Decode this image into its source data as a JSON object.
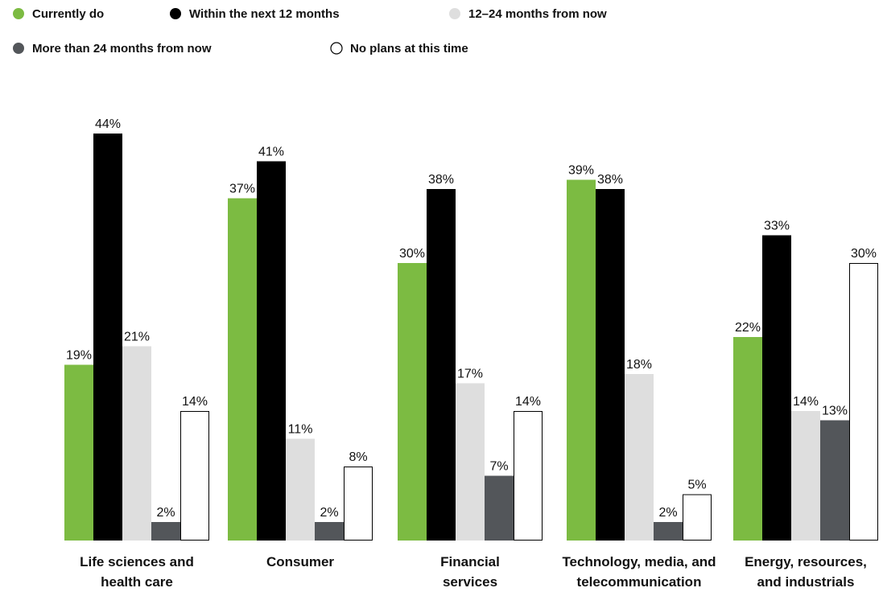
{
  "chart_data": {
    "type": "bar",
    "title": "",
    "xlabel": "",
    "ylabel": "",
    "ylim": [
      0,
      45
    ],
    "legend_position": "top",
    "grid": false,
    "categories": [
      [
        "Life sciences and",
        "health care"
      ],
      [
        "Consumer"
      ],
      [
        "Financial",
        "services"
      ],
      [
        "Technology, media, and",
        "telecommunication"
      ],
      [
        "Energy, resources,",
        "and industrials"
      ]
    ],
    "series": [
      {
        "name": "Currently do",
        "color": "#7cbb42",
        "values": [
          19,
          37,
          30,
          39,
          22
        ]
      },
      {
        "name": "Within the next 12 months",
        "color": "#000000",
        "values": [
          44,
          41,
          38,
          38,
          33
        ]
      },
      {
        "name": "12–24 months from now",
        "color": "#dedede",
        "values": [
          21,
          11,
          17,
          18,
          14
        ]
      },
      {
        "name": "More than 24 months from now",
        "color": "#53565a",
        "values": [
          2,
          2,
          7,
          2,
          13
        ]
      },
      {
        "name": "No plans at this time",
        "color": "#ffffff",
        "stroke": "#000000",
        "values": [
          14,
          8,
          14,
          5,
          30
        ]
      }
    ],
    "value_suffix": "%"
  }
}
